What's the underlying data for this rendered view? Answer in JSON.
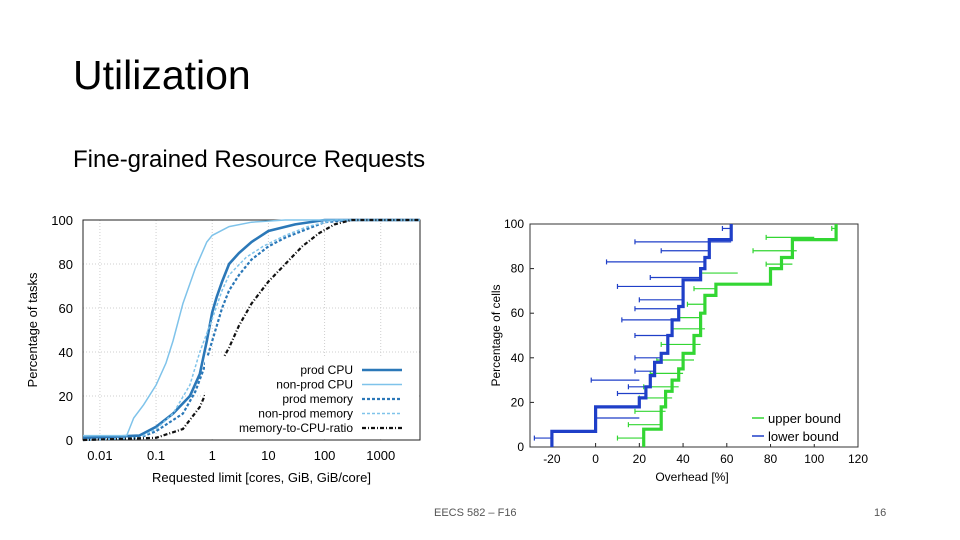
{
  "slide": {
    "title": "Utilization",
    "subtitle": "Fine-grained Resource Requests",
    "footer_center": "EECS 582 – F16",
    "page_number": "16"
  },
  "chart_data": [
    {
      "type": "line",
      "xscale": "log",
      "xlabel": "Requested limit [cores, GiB, GiB/core]",
      "ylabel": "Percentage of tasks",
      "xlim": [
        0.005,
        5000
      ],
      "ylim": [
        0,
        100
      ],
      "xticks": [
        "0.01",
        "0.1",
        "1",
        "10",
        "100",
        "1000"
      ],
      "yticks": [
        "0",
        "20",
        "40",
        "60",
        "80",
        "100"
      ],
      "grid": true,
      "legend": "bottom-right",
      "series": [
        {
          "name": "prod CPU",
          "color": "#2b78b8",
          "dash": "",
          "width": 2.6,
          "points": [
            [
              0.005,
              1
            ],
            [
              0.05,
              2
            ],
            [
              0.1,
              6
            ],
            [
              0.2,
              12
            ],
            [
              0.4,
              20
            ],
            [
              0.6,
              30
            ],
            [
              0.8,
              45
            ],
            [
              1,
              58
            ],
            [
              1.2,
              65
            ],
            [
              1.5,
              72
            ],
            [
              2,
              80
            ],
            [
              3,
              85
            ],
            [
              5,
              90
            ],
            [
              10,
              95
            ],
            [
              30,
              98
            ],
            [
              100,
              100
            ],
            [
              5000,
              100
            ]
          ]
        },
        {
          "name": "non-prod CPU",
          "color": "#7fc3ea",
          "dash": "",
          "width": 1.5,
          "points": [
            [
              0.005,
              2
            ],
            [
              0.03,
              2
            ],
            [
              0.04,
              10
            ],
            [
              0.06,
              16
            ],
            [
              0.1,
              25
            ],
            [
              0.15,
              35
            ],
            [
              0.2,
              45
            ],
            [
              0.3,
              62
            ],
            [
              0.5,
              78
            ],
            [
              0.8,
              90
            ],
            [
              1,
              93
            ],
            [
              2,
              97
            ],
            [
              5,
              99
            ],
            [
              20,
              100
            ],
            [
              5000,
              100
            ]
          ]
        },
        {
          "name": "prod memory",
          "color": "#2b78b8",
          "dash": "3,2",
          "width": 2.2,
          "points": [
            [
              0.005,
              0
            ],
            [
              0.05,
              1
            ],
            [
              0.1,
              4
            ],
            [
              0.3,
              12
            ],
            [
              0.5,
              22
            ],
            [
              0.7,
              32
            ],
            [
              1,
              45
            ],
            [
              1.5,
              60
            ],
            [
              2,
              68
            ],
            [
              3,
              75
            ],
            [
              5,
              82
            ],
            [
              10,
              88
            ],
            [
              20,
              92
            ],
            [
              50,
              96
            ],
            [
              100,
              99
            ],
            [
              300,
              100
            ],
            [
              5000,
              100
            ]
          ]
        },
        {
          "name": "non-prod memory",
          "color": "#7fc3ea",
          "dash": "3,2",
          "width": 1.5,
          "points": [
            [
              0.005,
              0
            ],
            [
              0.05,
              1
            ],
            [
              0.1,
              5
            ],
            [
              0.2,
              12
            ],
            [
              0.4,
              25
            ],
            [
              0.6,
              40
            ],
            [
              1,
              55
            ],
            [
              1.5,
              68
            ],
            [
              2,
              75
            ],
            [
              4,
              83
            ],
            [
              8,
              88
            ],
            [
              20,
              93
            ],
            [
              50,
              97
            ],
            [
              150,
              100
            ],
            [
              5000,
              100
            ]
          ]
        },
        {
          "name": "memory-to-CPU-ratio",
          "color": "#111111",
          "dash": "4,2,1,2",
          "width": 2.2,
          "points": [
            [
              0.005,
              0
            ],
            [
              0.1,
              1
            ],
            [
              0.3,
              5
            ],
            [
              0.6,
              15
            ],
            [
              1,
              28
            ],
            [
              2,
              42
            ],
            [
              3,
              52
            ],
            [
              5,
              62
            ],
            [
              10,
              72
            ],
            [
              20,
              80
            ],
            [
              40,
              88
            ],
            [
              80,
              94
            ],
            [
              150,
              98
            ],
            [
              300,
              100
            ],
            [
              5000,
              100
            ]
          ]
        }
      ]
    },
    {
      "type": "line",
      "xlabel": "Overhead [%]",
      "ylabel": "Percentage of cells",
      "xlim": [
        -30,
        120
      ],
      "ylim": [
        0,
        100
      ],
      "xticks": [
        "-20",
        "0",
        "20",
        "40",
        "60",
        "80",
        "100",
        "120"
      ],
      "yticks": [
        "0",
        "20",
        "40",
        "60",
        "80",
        "100"
      ],
      "grid": false,
      "legend": "bottom-right",
      "series": [
        {
          "name": "upper bound",
          "color": "#33d633",
          "step": [
            [
              22,
              0
            ],
            [
              22,
              8
            ],
            [
              30,
              8
            ],
            [
              30,
              18
            ],
            [
              32,
              18
            ],
            [
              32,
              25
            ],
            [
              35,
              25
            ],
            [
              35,
              30
            ],
            [
              38,
              30
            ],
            [
              38,
              35
            ],
            [
              40,
              35
            ],
            [
              40,
              42
            ],
            [
              45,
              42
            ],
            [
              45,
              50
            ],
            [
              48,
              50
            ],
            [
              48,
              60
            ],
            [
              50,
              60
            ],
            [
              50,
              68
            ],
            [
              55,
              68
            ],
            [
              55,
              73
            ],
            [
              80,
              73
            ],
            [
              80,
              80
            ],
            [
              85,
              80
            ],
            [
              85,
              85
            ],
            [
              90,
              85
            ],
            [
              90,
              93
            ],
            [
              110,
              93
            ],
            [
              110,
              100
            ]
          ],
          "whiskers": [
            [
              10,
              4,
              22
            ],
            [
              15,
              10,
              30
            ],
            [
              18,
              16,
              32
            ],
            [
              20,
              22,
              35
            ],
            [
              22,
              27,
              38
            ],
            [
              25,
              33,
              40
            ],
            [
              28,
              39,
              45
            ],
            [
              30,
              46,
              48
            ],
            [
              35,
              53,
              50
            ],
            [
              38,
              58,
              48
            ],
            [
              42,
              64,
              50
            ],
            [
              45,
              71,
              55
            ],
            [
              48,
              78,
              65
            ],
            [
              78,
              82,
              90
            ],
            [
              72,
              88,
              92
            ],
            [
              78,
              94,
              100
            ],
            [
              108,
              98,
              110
            ]
          ]
        },
        {
          "name": "lower bound",
          "color": "#1f3fc8",
          "step": [
            [
              -20,
              0
            ],
            [
              -20,
              7
            ],
            [
              0,
              7
            ],
            [
              0,
              18
            ],
            [
              20,
              18
            ],
            [
              20,
              22
            ],
            [
              23,
              22
            ],
            [
              23,
              27
            ],
            [
              25,
              27
            ],
            [
              25,
              32
            ],
            [
              27,
              32
            ],
            [
              27,
              38
            ],
            [
              30,
              38
            ],
            [
              30,
              42
            ],
            [
              33,
              42
            ],
            [
              33,
              50
            ],
            [
              35,
              50
            ],
            [
              35,
              57
            ],
            [
              38,
              57
            ],
            [
              38,
              63
            ],
            [
              40,
              63
            ],
            [
              40,
              75
            ],
            [
              48,
              75
            ],
            [
              48,
              80
            ],
            [
              50,
              80
            ],
            [
              50,
              85
            ],
            [
              52,
              85
            ],
            [
              52,
              93
            ],
            [
              62,
              93
            ],
            [
              62,
              100
            ]
          ],
          "whiskers": [
            [
              -28,
              4,
              -20
            ],
            [
              0,
              13,
              20
            ],
            [
              -2,
              30,
              20
            ],
            [
              10,
              24,
              23
            ],
            [
              15,
              27,
              25
            ],
            [
              18,
              34,
              27
            ],
            [
              18,
              40,
              30
            ],
            [
              18,
              50,
              33
            ],
            [
              12,
              57,
              35
            ],
            [
              18,
              62,
              38
            ],
            [
              20,
              66,
              40
            ],
            [
              10,
              72,
              40
            ],
            [
              25,
              76,
              48
            ],
            [
              5,
              83,
              50
            ],
            [
              30,
              88,
              52
            ],
            [
              18,
              92,
              62
            ],
            [
              58,
              98,
              62
            ]
          ]
        }
      ]
    }
  ]
}
